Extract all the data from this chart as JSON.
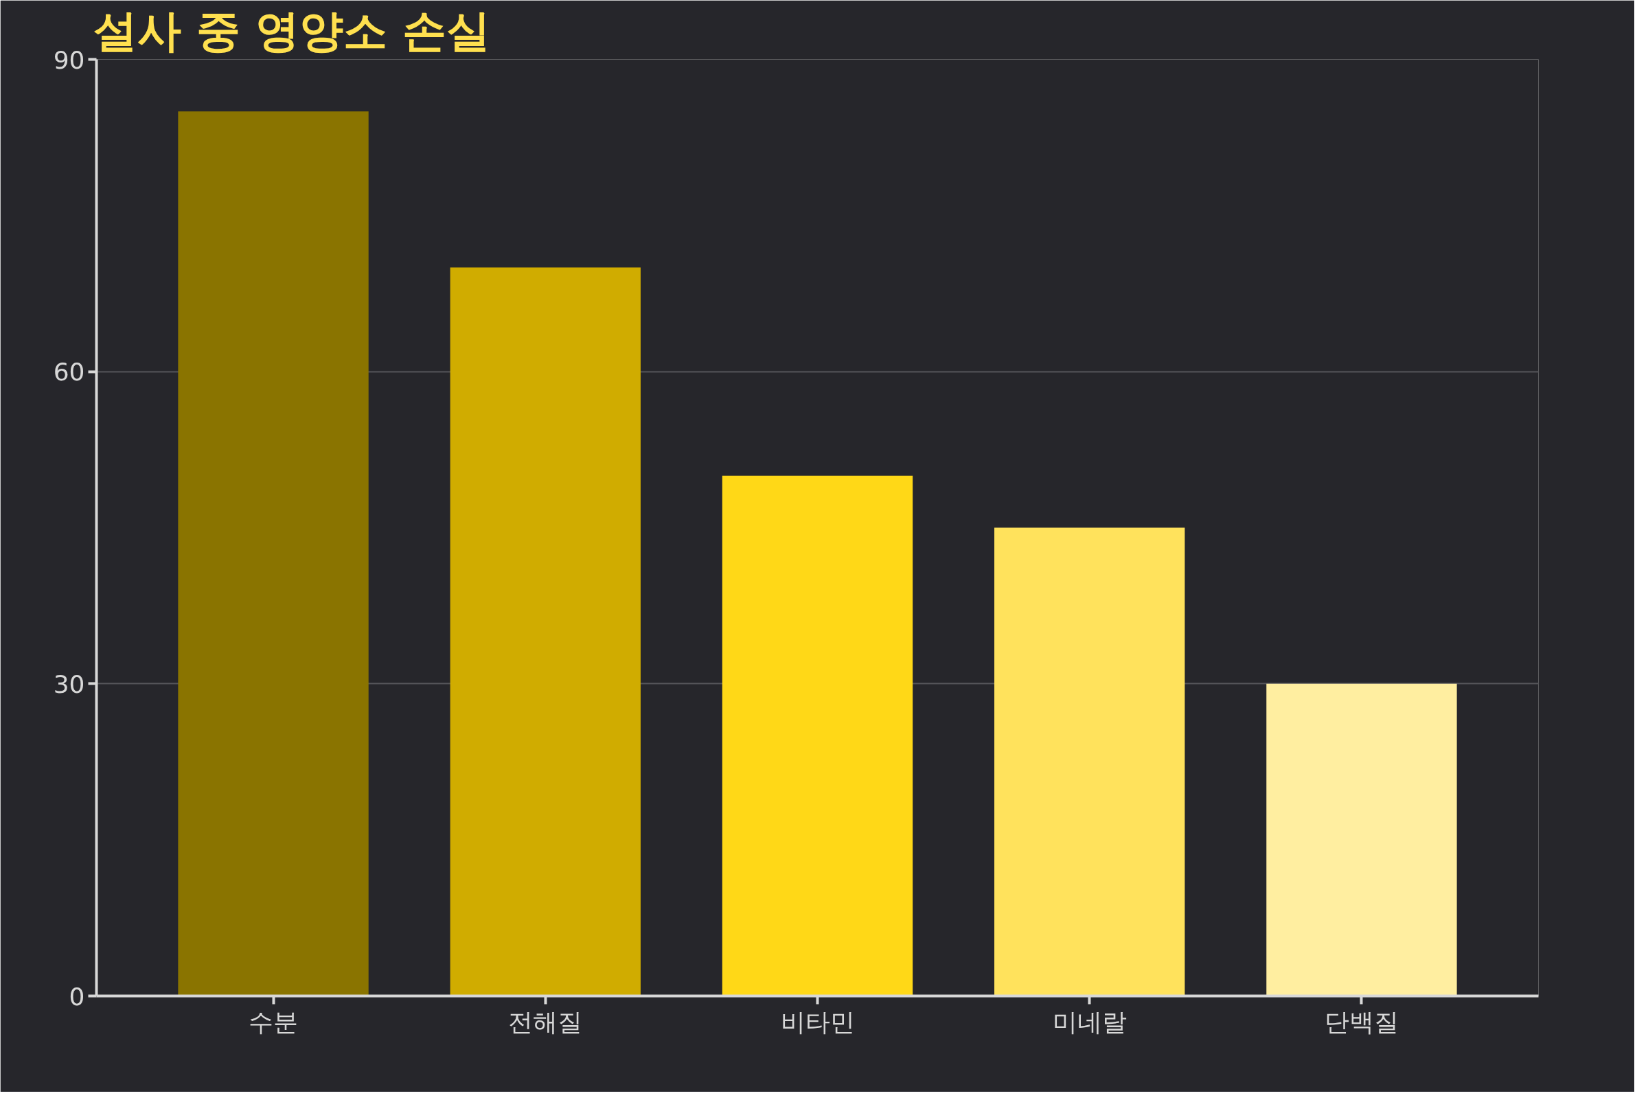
{
  "chart_data": {
    "type": "bar",
    "title": "설사 중 영양소 손실",
    "categories": [
      "수분",
      "전해질",
      "비타민",
      "미네랄",
      "단백질"
    ],
    "values": [
      85,
      70,
      50,
      45,
      30
    ],
    "colors": [
      "#8a7400",
      "#d0ac00",
      "#ffd817",
      "#ffe25c",
      "#ffeea0"
    ],
    "ylim": [
      0,
      90
    ],
    "yticks": [
      0,
      30,
      60,
      90
    ],
    "grid": "y"
  }
}
